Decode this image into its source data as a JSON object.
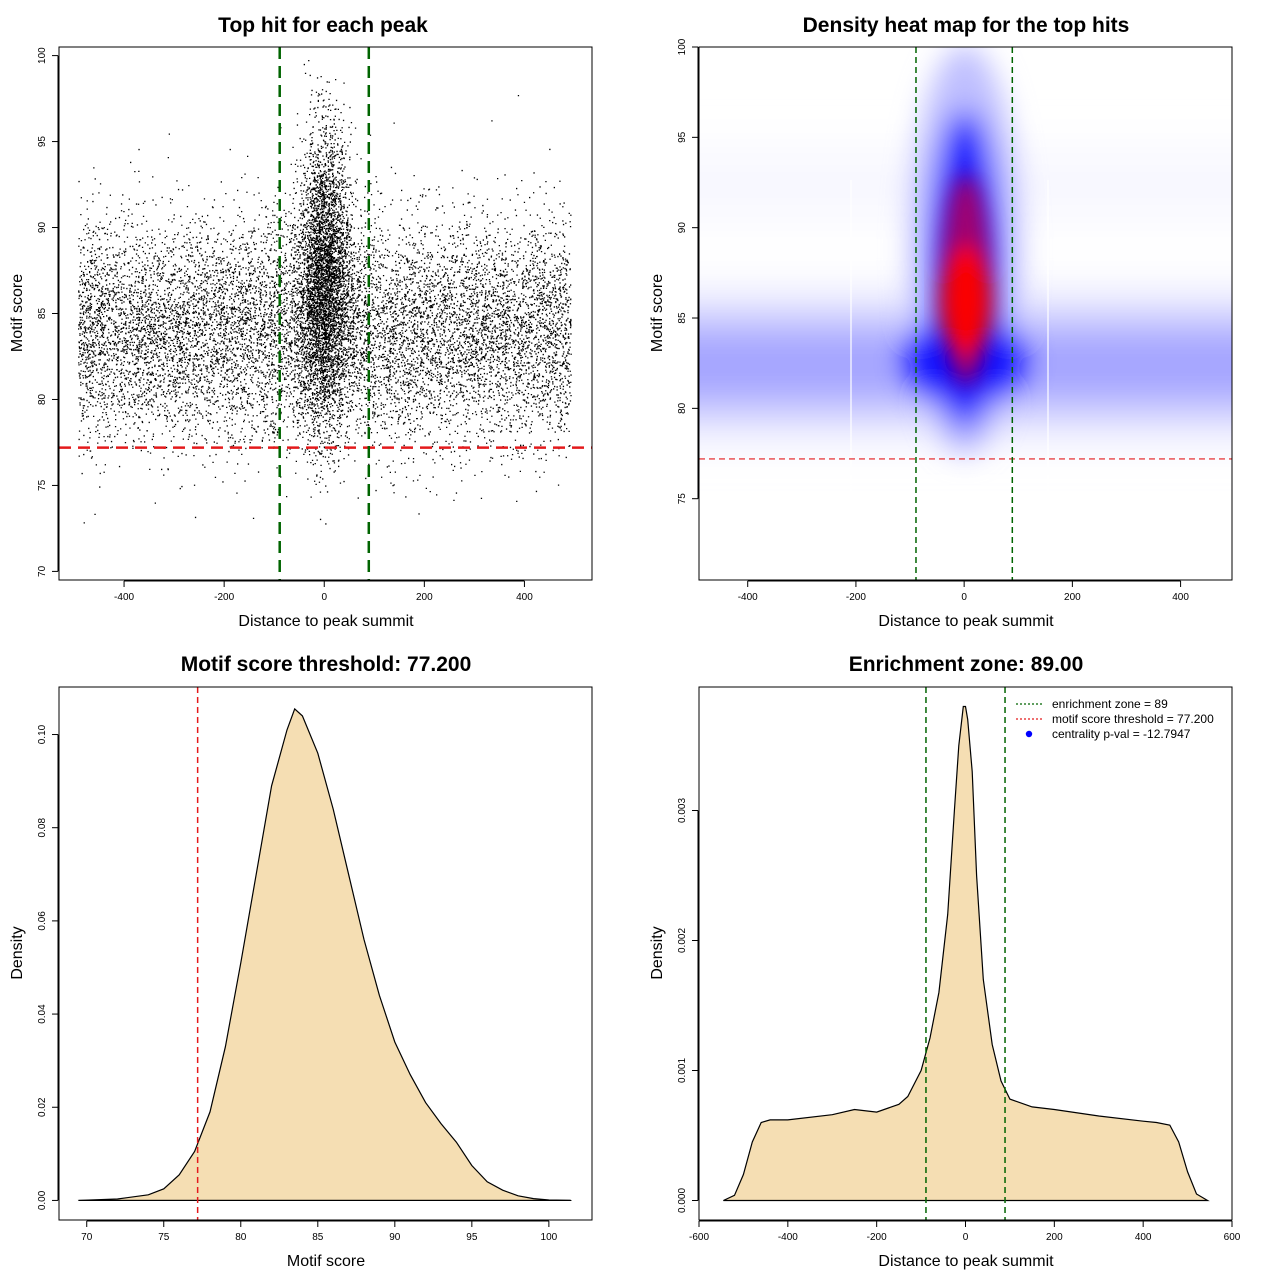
{
  "chart_data": [
    {
      "id": "scatter",
      "type": "scatter",
      "title": "Top hit for each peak",
      "xlabel": "Distance to peak summit",
      "ylabel": "Motif score",
      "xlim": [
        -530,
        535
      ],
      "ylim": [
        69.5,
        100.5
      ],
      "xticks": [
        -400,
        -200,
        0,
        200,
        400
      ],
      "xtick_labels": [
        "-400",
        "-200",
        "0",
        "200",
        "400"
      ],
      "yticks": [
        70,
        75,
        80,
        85,
        90,
        95,
        100
      ],
      "ytick_labels": [
        "70",
        "75",
        "80",
        "85",
        "90",
        "95",
        "100"
      ],
      "point_distribution": {
        "background": {
          "n": 11000,
          "x_range": [
            -492,
            492
          ],
          "y_mean": 84.0,
          "y_sd": 3.2
        },
        "central": {
          "n": 4200,
          "x_mean": 0,
          "x_sd": 26,
          "y_mean": 87.0,
          "y_sd": 4.2
        }
      },
      "threshold_y": 77.2,
      "zone_x": [
        -89,
        89
      ]
    },
    {
      "id": "heatmap",
      "type": "heatmap",
      "title": "Density heat map for the top hits",
      "xlabel": "Distance to peak summit",
      "ylabel": "Motif score",
      "xlim": [
        -490,
        495
      ],
      "ylim": [
        70.5,
        100
      ],
      "xticks": [
        -400,
        -200,
        0,
        200,
        400
      ],
      "xtick_labels": [
        "-400",
        "-200",
        "0",
        "200",
        "400"
      ],
      "yticks": [
        75,
        80,
        85,
        90,
        95,
        100
      ],
      "ytick_labels": [
        "75",
        "80",
        "85",
        "90",
        "95",
        "100"
      ],
      "threshold_y": 77.2,
      "zone_x": [
        -89,
        89
      ],
      "colors": [
        "#ffffff",
        "#0000ff",
        "#ff0000"
      ]
    },
    {
      "id": "density_score",
      "type": "area",
      "title": "Motif score threshold: 77.200",
      "xlabel": "Motif score",
      "ylabel": "Density",
      "xlim": [
        68.2,
        102.8
      ],
      "ylim": [
        -0.0042,
        0.1102
      ],
      "xticks": [
        70,
        75,
        80,
        85,
        90,
        95,
        100
      ],
      "xtick_labels": [
        "70",
        "75",
        "80",
        "85",
        "90",
        "95",
        "100"
      ],
      "yticks": [
        0,
        0.02,
        0.04,
        0.06,
        0.08,
        0.1
      ],
      "ytick_labels": [
        "0.00",
        "0.02",
        "0.04",
        "0.06",
        "0.08",
        "0.10"
      ],
      "x": [
        69.5,
        72,
        74,
        75,
        76,
        77,
        78,
        79,
        80,
        81,
        82,
        83,
        83.5,
        84,
        85,
        86,
        87,
        88,
        89,
        90,
        91,
        92,
        93,
        94,
        95,
        96,
        97,
        98,
        99,
        100,
        101.4
      ],
      "y": [
        0,
        0.0003,
        0.0012,
        0.0025,
        0.0055,
        0.0105,
        0.019,
        0.033,
        0.051,
        0.07,
        0.089,
        0.101,
        0.1055,
        0.104,
        0.096,
        0.084,
        0.07,
        0.056,
        0.044,
        0.034,
        0.027,
        0.021,
        0.0165,
        0.0125,
        0.0075,
        0.004,
        0.0022,
        0.001,
        0.0004,
        0.0001,
        0
      ],
      "threshold_x": 77.2,
      "fill_color": "#f5deb3",
      "threshold_color": "#e41a1c"
    },
    {
      "id": "density_dist",
      "type": "area",
      "title": "Enrichment zone: 89.00",
      "xlabel": "Distance to peak summit",
      "ylabel": "Density",
      "xlim": [
        -600,
        600
      ],
      "ylim": [
        -0.00015,
        0.00395
      ],
      "xticks": [
        -600,
        -400,
        -200,
        0,
        200,
        400,
        600
      ],
      "xtick_labels": [
        "-600",
        "-400",
        "-200",
        "0",
        "200",
        "400",
        "600"
      ],
      "yticks": [
        0,
        0.001,
        0.002,
        0.003
      ],
      "ytick_labels": [
        "0.000",
        "0.001",
        "0.002",
        "0.003"
      ],
      "x": [
        -545,
        -520,
        -500,
        -480,
        -460,
        -440,
        -400,
        -300,
        -250,
        -200,
        -150,
        -130,
        -100,
        -80,
        -60,
        -40,
        -25,
        -15,
        -5,
        0,
        5,
        15,
        25,
        40,
        60,
        80,
        100,
        150,
        200,
        300,
        400,
        430,
        460,
        480,
        500,
        520,
        545
      ],
      "y": [
        0,
        4e-05,
        0.0002,
        0.00045,
        0.0006,
        0.00062,
        0.00062,
        0.00066,
        0.0007,
        0.00068,
        0.00074,
        0.0008,
        0.001,
        0.00125,
        0.0016,
        0.0022,
        0.003,
        0.0035,
        0.0038,
        0.0038,
        0.0037,
        0.0033,
        0.0025,
        0.0017,
        0.0012,
        0.00092,
        0.00078,
        0.00072,
        0.0007,
        0.00065,
        0.00061,
        0.0006,
        0.00058,
        0.00045,
        0.00022,
        5e-05,
        0
      ],
      "zone_x": [
        -89,
        89
      ],
      "fill_color": "#f5deb3",
      "zone_color": "#006400",
      "legend": {
        "position": "top-right",
        "entries": [
          {
            "label": "enrichment zone = 89",
            "style": "dotted",
            "color": "#006400"
          },
          {
            "label": "motif score threshold = 77.200",
            "style": "dotted",
            "color": "#e41a1c"
          },
          {
            "label": "centrality p-val = -12.7947",
            "style": "point",
            "color": "#0000ff"
          }
        ]
      }
    }
  ]
}
